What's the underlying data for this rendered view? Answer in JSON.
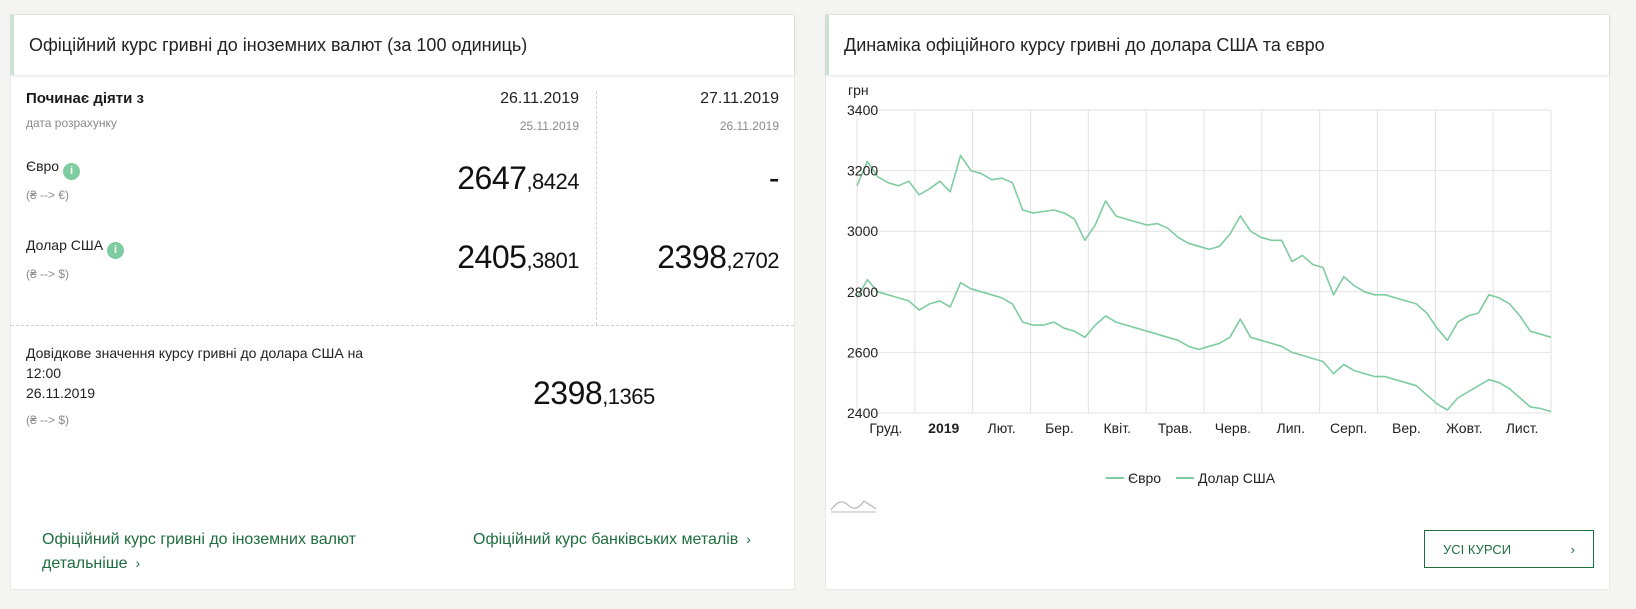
{
  "left": {
    "title": "Офіційний курс гривні до іноземних валют (за 100 одиниць)",
    "effective_label": "Починає діяти з",
    "calc_label": "дата розрахунку",
    "col1": {
      "date": "26.11.2019",
      "calc_date": "25.11.2019"
    },
    "col2": {
      "date": "27.11.2019",
      "calc_date": "26.11.2019"
    },
    "euro": {
      "label": "Євро",
      "pair": "(₴ --> €)",
      "col1_int": "2647",
      "col1_frac": ",8424",
      "col2": "-"
    },
    "usd": {
      "label": "Долар США",
      "pair": "(₴ --> $)",
      "col1_int": "2405",
      "col1_frac": ",3801",
      "col2_int": "2398",
      "col2_frac": ",2702"
    },
    "reference": {
      "line1": "Довідкове значення курсу гривні до долара США на",
      "line2": "12:00",
      "line3": "26.11.2019",
      "pair": "(₴ --> $)",
      "int": "2398",
      "frac": ",1365"
    },
    "link_detail_1": "Офіційний курс гривні до іноземних валют",
    "link_detail_2": "детальніше",
    "link_metals": "Офіційний курс банківських металів",
    "info_glyph": "i",
    "chevron": "›"
  },
  "right": {
    "title": "Динаміка офіційного курсу гривні до долара США та євро",
    "button_label": "УСІ КУРСИ",
    "chevron": "›"
  },
  "colors": {
    "accent": "#1f6e3f",
    "line": "#7fcca0",
    "header_border": "#c9e3d3"
  },
  "chart_data": {
    "type": "line",
    "ylabel": "грн",
    "ylim": [
      2400,
      3400
    ],
    "yticks": [
      2400,
      2600,
      2800,
      3000,
      3200,
      3400
    ],
    "x_labels": [
      "Груд.",
      "2019",
      "Лют.",
      "Бер.",
      "Квіт.",
      "Трав.",
      "Черв.",
      "Лип.",
      "Серп.",
      "Вер.",
      "Жовт.",
      "Лист."
    ],
    "x_labels_bold": [
      false,
      true,
      false,
      false,
      false,
      false,
      false,
      false,
      false,
      false,
      false,
      false
    ],
    "legend_position": "bottom",
    "series": [
      {
        "name": "Євро",
        "values": [
          3150,
          3230,
          3180,
          3160,
          3150,
          3165,
          3120,
          3140,
          3165,
          3130,
          3250,
          3200,
          3190,
          3170,
          3175,
          3160,
          3070,
          3060,
          3065,
          3070,
          3060,
          3040,
          2970,
          3020,
          3100,
          3050,
          3040,
          3030,
          3020,
          3025,
          3010,
          2980,
          2960,
          2950,
          2940,
          2950,
          2990,
          3050,
          3000,
          2980,
          2970,
          2970,
          2900,
          2920,
          2890,
          2880,
          2790,
          2850,
          2820,
          2800,
          2790,
          2790,
          2780,
          2770,
          2760,
          2730,
          2680,
          2640,
          2700,
          2720,
          2730,
          2790,
          2780,
          2760,
          2720,
          2670,
          2660,
          2650
        ]
      },
      {
        "name": "Долар США",
        "values": [
          2780,
          2840,
          2800,
          2790,
          2780,
          2770,
          2740,
          2760,
          2770,
          2750,
          2830,
          2810,
          2800,
          2790,
          2780,
          2760,
          2700,
          2690,
          2690,
          2700,
          2680,
          2670,
          2650,
          2690,
          2720,
          2700,
          2690,
          2680,
          2670,
          2660,
          2650,
          2640,
          2620,
          2610,
          2620,
          2630,
          2650,
          2710,
          2650,
          2640,
          2630,
          2620,
          2600,
          2590,
          2580,
          2570,
          2530,
          2560,
          2540,
          2530,
          2520,
          2520,
          2510,
          2500,
          2490,
          2460,
          2430,
          2410,
          2450,
          2470,
          2490,
          2510,
          2500,
          2480,
          2450,
          2420,
          2415,
          2405
        ]
      }
    ]
  }
}
